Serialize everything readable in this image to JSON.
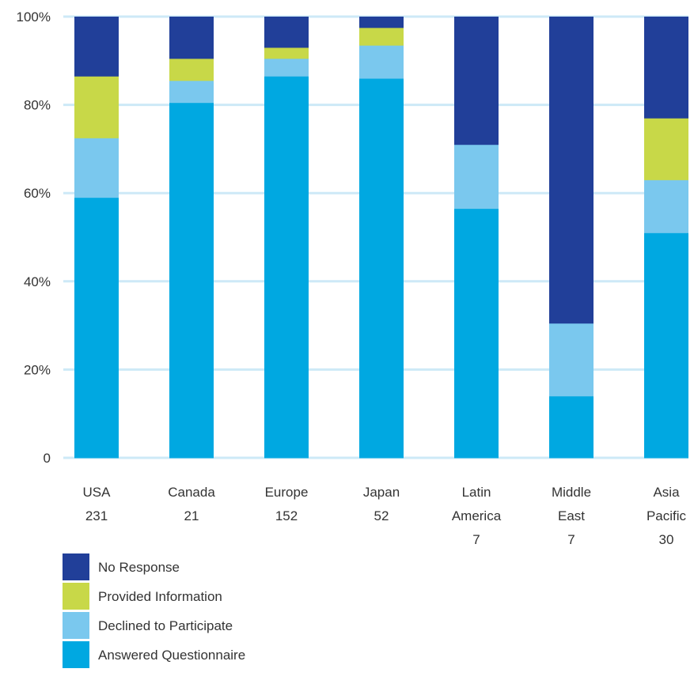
{
  "chart_data": {
    "type": "bar",
    "stacked": true,
    "percent_axis": true,
    "categories": [
      [
        "USA",
        "231"
      ],
      [
        "Canada",
        "21"
      ],
      [
        "Europe",
        "152"
      ],
      [
        "Japan",
        "52"
      ],
      [
        "Latin",
        "America",
        "7"
      ],
      [
        "Middle",
        "East",
        "7"
      ],
      [
        "Asia",
        "Pacific",
        "30"
      ]
    ],
    "series": [
      {
        "name": "Answered Questionnaire",
        "color": "#00a8e1",
        "values": [
          59,
          80.5,
          86.5,
          86,
          56.5,
          14,
          51
        ]
      },
      {
        "name": "Declined to Participate",
        "color": "#7ac8ee",
        "values": [
          13.5,
          5,
          4,
          7.5,
          14.5,
          16.5,
          12
        ]
      },
      {
        "name": "Provided Information",
        "color": "#c8d848",
        "values": [
          14,
          5,
          2.5,
          4,
          0,
          0,
          14
        ]
      },
      {
        "name": "No Response",
        "color": "#213f99",
        "values": [
          13.5,
          9.5,
          7,
          2.5,
          29,
          69.5,
          23
        ]
      }
    ],
    "ylim": [
      0,
      100
    ],
    "yticks": [
      {
        "value": 0,
        "label": "0"
      },
      {
        "value": 20,
        "label": "20%"
      },
      {
        "value": 40,
        "label": "40%"
      },
      {
        "value": 60,
        "label": "60%"
      },
      {
        "value": 80,
        "label": "80%"
      },
      {
        "value": 100,
        "label": "100%"
      }
    ],
    "gridlines": true,
    "grid_color": "#cde9f7",
    "legend_order": [
      "No Response",
      "Provided Information",
      "Declined to Participate",
      "Answered Questionnaire"
    ],
    "legend_position": "bottom-left"
  }
}
